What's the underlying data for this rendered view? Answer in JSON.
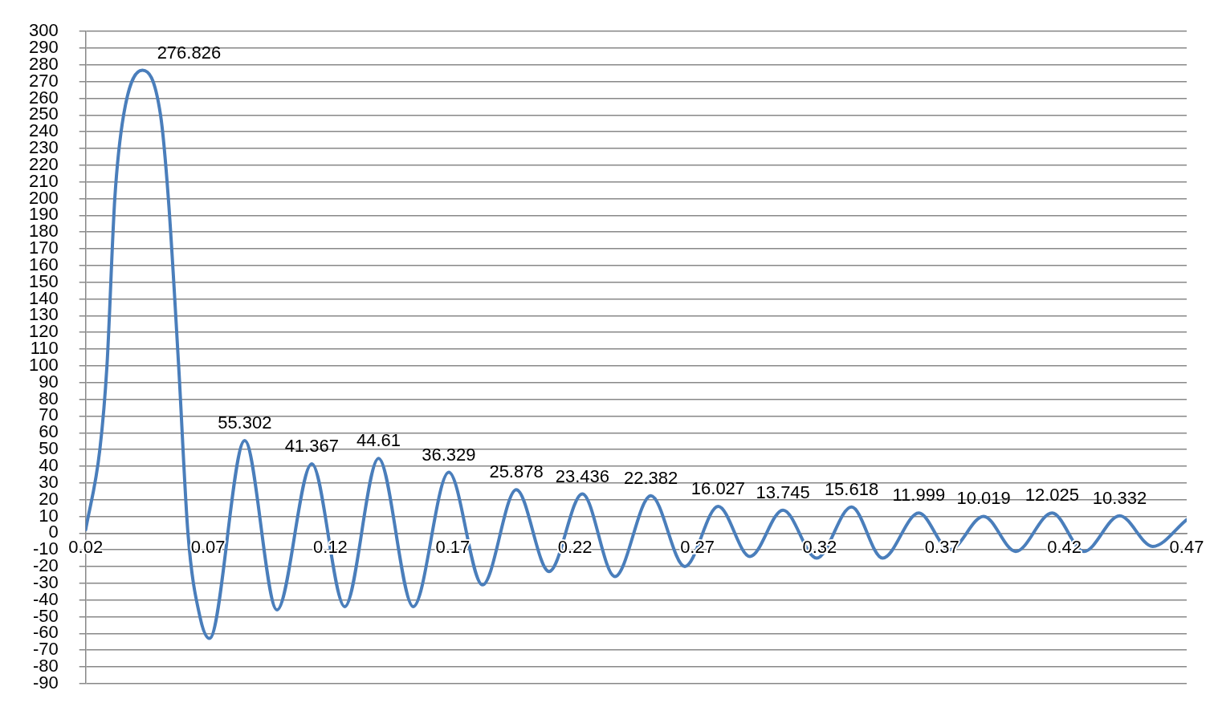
{
  "chart_data": {
    "type": "line",
    "x": [
      0.02,
      0.0258,
      0.0287,
      0.0319,
      0.0355,
      0.0432,
      0.0506,
      0.0538,
      0.058,
      0.0618,
      0.0667,
      0.0706,
      0.085,
      0.0982,
      0.1124,
      0.1259,
      0.1397,
      0.1539,
      0.1684,
      0.1822,
      0.196,
      0.2094,
      0.223,
      0.2363,
      0.251,
      0.2649,
      0.2785,
      0.2915,
      0.305,
      0.3188,
      0.333,
      0.3457,
      0.3605,
      0.3731,
      0.387,
      0.4001,
      0.415,
      0.428,
      0.4426,
      0.4561,
      0.47
    ],
    "series": [
      {
        "color": "#4a7ebb",
        "values": [
          2,
          50,
          100,
          200,
          250,
          276.826,
          250,
          200,
          100,
          0,
          -50,
          -63,
          55.302,
          -46,
          41.367,
          -44,
          44.61,
          -44,
          36.329,
          -31,
          25.878,
          -23,
          23.436,
          -26,
          22.382,
          -20,
          16.027,
          -14,
          13.745,
          -15,
          15.618,
          -15,
          11.999,
          -10,
          10.019,
          -11,
          12.025,
          -11,
          10.332,
          -8,
          8
        ],
        "value_labels": [
          null,
          null,
          null,
          null,
          null,
          "276.826",
          null,
          null,
          null,
          null,
          null,
          null,
          "55.302",
          null,
          "41.367",
          null,
          "44.61",
          null,
          "36.329",
          null,
          "25.878",
          null,
          "23.436",
          null,
          "22.382",
          null,
          "16.027",
          null,
          "13.745",
          null,
          "15.618",
          null,
          "11.999",
          null,
          "10.019",
          null,
          "12.025",
          null,
          "10.332",
          null,
          null
        ]
      }
    ],
    "xlim": [
      0.02,
      0.47
    ],
    "xticks": [
      0.02,
      0.07,
      0.12,
      0.17,
      0.22,
      0.27,
      0.32,
      0.37,
      0.42,
      0.47
    ],
    "ylim": [
      -90,
      300
    ],
    "yticks": [
      -90,
      -80,
      -70,
      -60,
      -50,
      -40,
      -30,
      -20,
      -10,
      0,
      10,
      20,
      30,
      40,
      50,
      60,
      70,
      80,
      90,
      100,
      110,
      120,
      130,
      140,
      150,
      160,
      170,
      180,
      190,
      200,
      210,
      220,
      230,
      240,
      250,
      260,
      270,
      280,
      290,
      300
    ],
    "grid": "y",
    "legend": false,
    "marker": "none",
    "line_style": "solid"
  }
}
